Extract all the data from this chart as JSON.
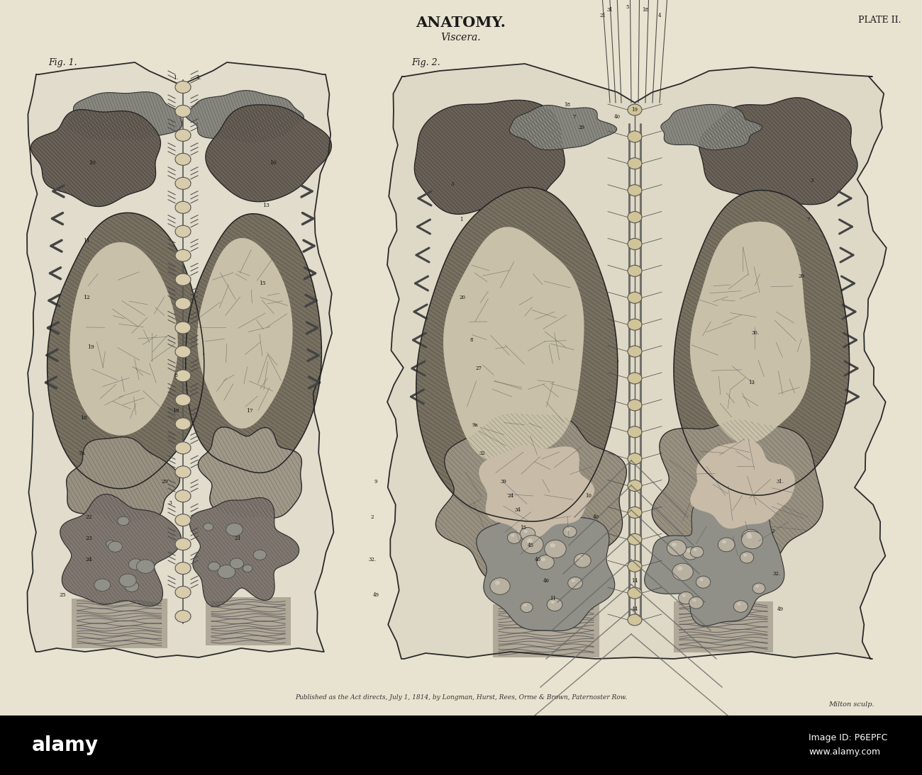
{
  "title": "ANATOMY.",
  "subtitle": "Viscera.",
  "plate_text": "PLATE II.",
  "fig1_label": "Fig. 1.",
  "fig2_label": "Fig. 2.",
  "publisher_text": "Published as the Act directs, July 1, 1814, by Longman, Hurst, Rees, Orme & Brown, Paternoster Row.",
  "engraver_text": "Milton sculp.",
  "page_bg": "#e8e2d0",
  "text_color": "#1a1a1a",
  "title_fontsize": 15,
  "subtitle_fontsize": 10,
  "label_fontsize": 9,
  "spine_color": "#d4c8a8",
  "dark_gray": "#3a3a3a",
  "mid_gray": "#7a7a7a",
  "light_gray": "#b0a898",
  "organ_fill": "#9a9080",
  "lung_fill": "#888070",
  "border_lw": 1.2
}
